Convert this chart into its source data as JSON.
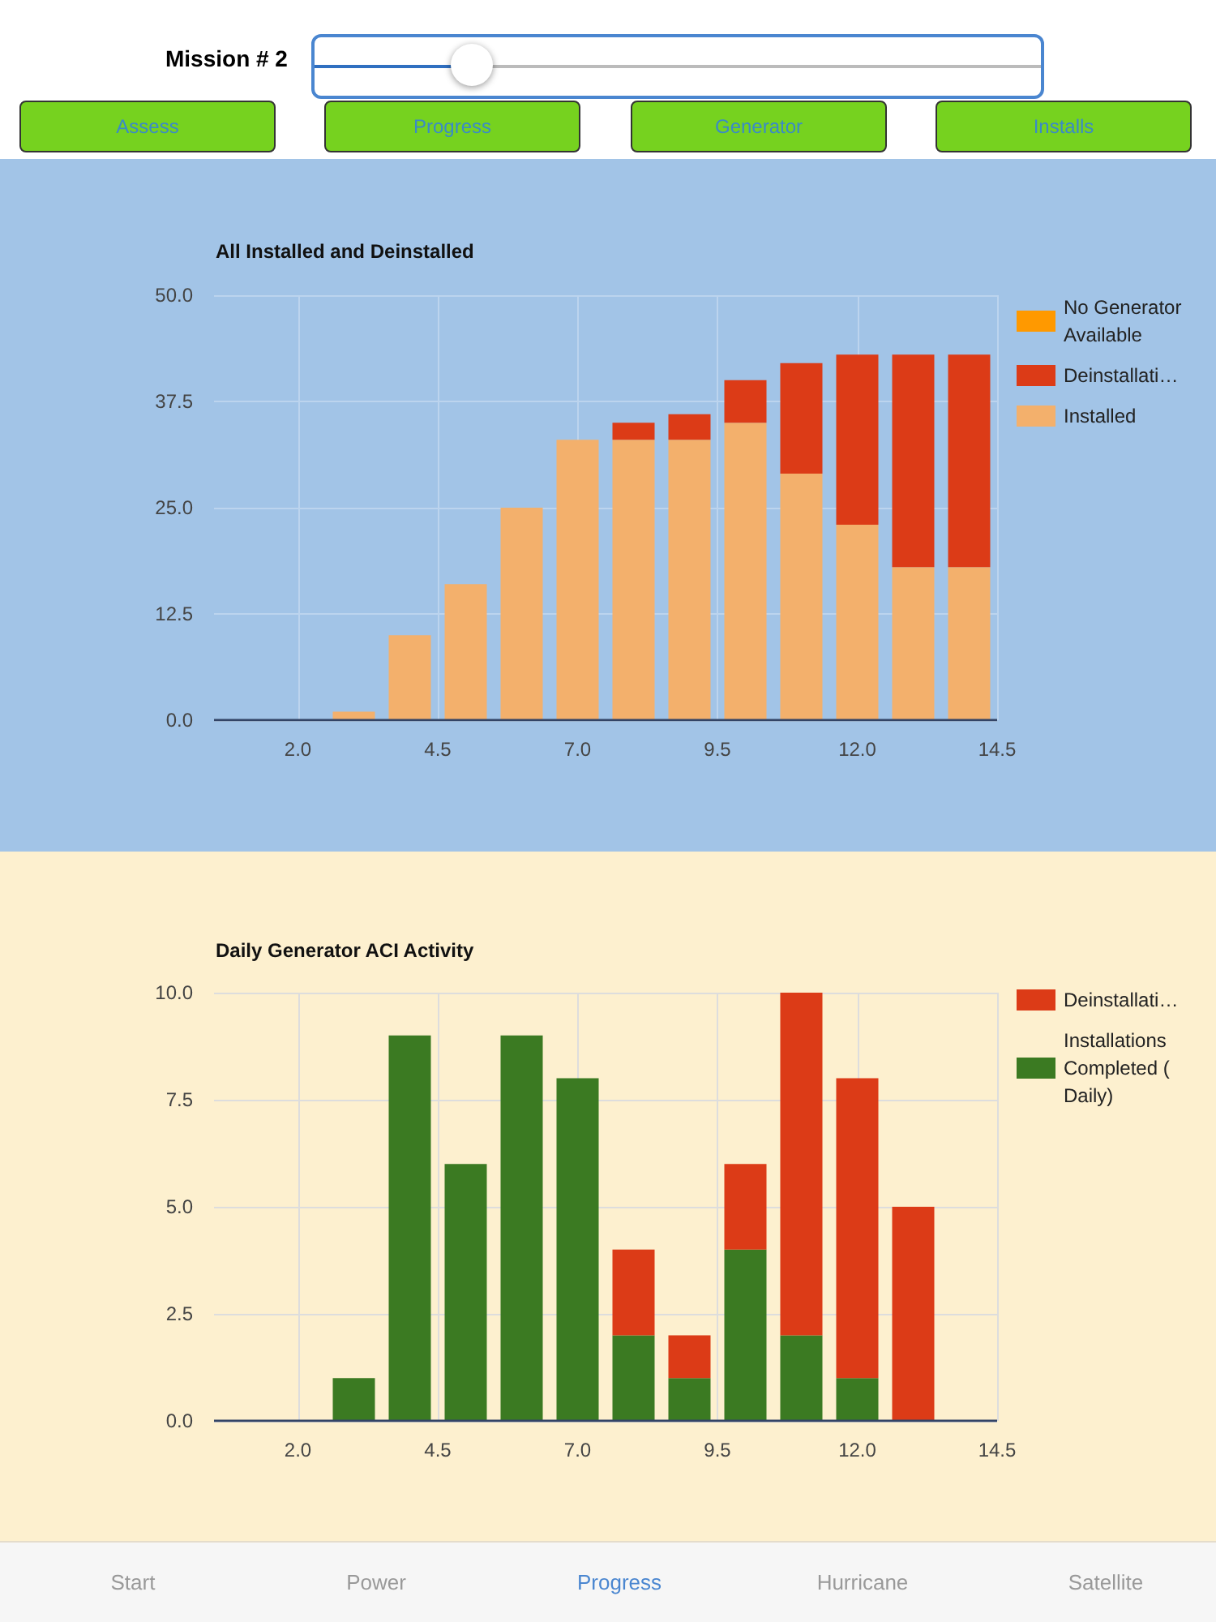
{
  "chart_data": [
    {
      "type": "other",
      "title": "Mission # 2",
      "annotations": [
        "Assess",
        "Progress",
        "Generator",
        "Installs"
      ]
    },
    {
      "type": "bar",
      "title": "All Installed and Deinstalled",
      "stacked": true,
      "x": [
        3,
        4,
        5,
        6,
        7,
        8,
        9,
        10,
        11,
        12,
        13,
        14
      ],
      "series": [
        {
          "name": "Installed",
          "color": "#f3b06c",
          "values": [
            1,
            10,
            16,
            25,
            33,
            33,
            33,
            35,
            29,
            23,
            18,
            18
          ]
        },
        {
          "name": "Deinstallati…",
          "color": "#dc3b17",
          "values": [
            null,
            null,
            null,
            null,
            null,
            2,
            3,
            5,
            13,
            20,
            25,
            25
          ]
        },
        {
          "name": "No Generator Available",
          "color": "#ff9900",
          "values": [
            null,
            null,
            null,
            null,
            null,
            null,
            null,
            null,
            null,
            null,
            null,
            null
          ]
        }
      ],
      "xlim": [
        0.5,
        14.5
      ],
      "xticks": [
        {
          "value": 2,
          "label": "2.0"
        },
        {
          "value": 4.5,
          "label": "4.5"
        },
        {
          "value": 7,
          "label": "7.0"
        },
        {
          "value": 9.5,
          "label": "9.5"
        },
        {
          "value": 12,
          "label": "12.0"
        },
        {
          "value": 14.5,
          "label": "14.5"
        }
      ],
      "ylim": [
        0,
        50
      ],
      "yticks": [
        {
          "value": 0,
          "label": "0.0"
        },
        {
          "value": 12.5,
          "label": "12.5"
        },
        {
          "value": 25,
          "label": "25.0"
        },
        {
          "value": 37.5,
          "label": "37.5"
        },
        {
          "value": 50,
          "label": "50.0"
        }
      ],
      "grid": true,
      "legend": "top right"
    },
    {
      "type": "bar",
      "title": "Daily Generator ACI Activity",
      "stacked": true,
      "x": [
        3,
        4,
        5,
        6,
        7,
        8,
        9,
        10,
        11,
        12,
        13
      ],
      "series": [
        {
          "name": "Installations Completed ( Daily)",
          "color": "#3b7a22",
          "values": [
            1,
            9,
            6,
            9,
            8,
            2,
            1,
            4,
            2,
            1,
            null
          ]
        },
        {
          "name": "Deinstallati…",
          "color": "#dc3b17",
          "values": [
            null,
            null,
            null,
            null,
            null,
            2,
            1,
            2,
            8,
            7,
            5
          ]
        }
      ],
      "xlim": [
        0.5,
        14.5
      ],
      "xticks": [
        {
          "value": 2,
          "label": "2.0"
        },
        {
          "value": 4.5,
          "label": "4.5"
        },
        {
          "value": 7,
          "label": "7.0"
        },
        {
          "value": 9.5,
          "label": "9.5"
        },
        {
          "value": 12,
          "label": "12.0"
        },
        {
          "value": 14.5,
          "label": "14.5"
        }
      ],
      "ylim": [
        0,
        10
      ],
      "yticks": [
        {
          "value": 0,
          "label": "0.0"
        },
        {
          "value": 2.5,
          "label": "2.5"
        },
        {
          "value": 5,
          "label": "5.0"
        },
        {
          "value": 7.5,
          "label": "7.5"
        },
        {
          "value": 10,
          "label": "10.0"
        }
      ],
      "grid": true,
      "legend": "top right"
    },
    {
      "type": "other",
      "annotations": [
        "Start",
        "Power",
        "Progress",
        "Hurricane",
        "Satellite"
      ]
    }
  ]
}
